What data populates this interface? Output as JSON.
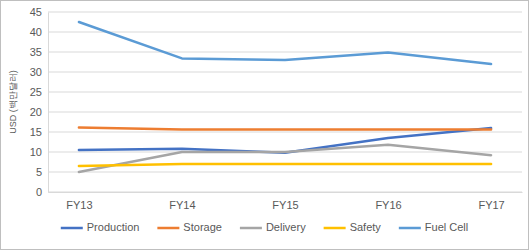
{
  "chart_data": {
    "type": "line",
    "y_label": "USD (백만달러)",
    "categories": [
      "FY13",
      "FY14",
      "FY15",
      "FY16",
      "FY17"
    ],
    "series": [
      {
        "name": "Production",
        "color": "#4472c4",
        "values": [
          10.5,
          10.8,
          9.8,
          13.5,
          16.0
        ]
      },
      {
        "name": "Storage",
        "color": "#ed7d31",
        "values": [
          16.1,
          15.6,
          15.6,
          15.6,
          15.6
        ]
      },
      {
        "name": "Delivery",
        "color": "#a5a5a5",
        "values": [
          5.0,
          10.0,
          10.0,
          11.8,
          9.2
        ]
      },
      {
        "name": "Safety",
        "color": "#ffc000",
        "values": [
          6.5,
          7.0,
          7.0,
          7.0,
          7.0
        ]
      },
      {
        "name": "Fuel Cell",
        "color": "#5b9bd5",
        "values": [
          42.5,
          33.4,
          33.0,
          34.9,
          32.0
        ]
      }
    ],
    "ylim": [
      0,
      45
    ],
    "yticks": [
      0,
      5,
      10,
      15,
      20,
      25,
      30,
      35,
      40,
      45
    ],
    "grid": true,
    "legend": "bottom"
  }
}
